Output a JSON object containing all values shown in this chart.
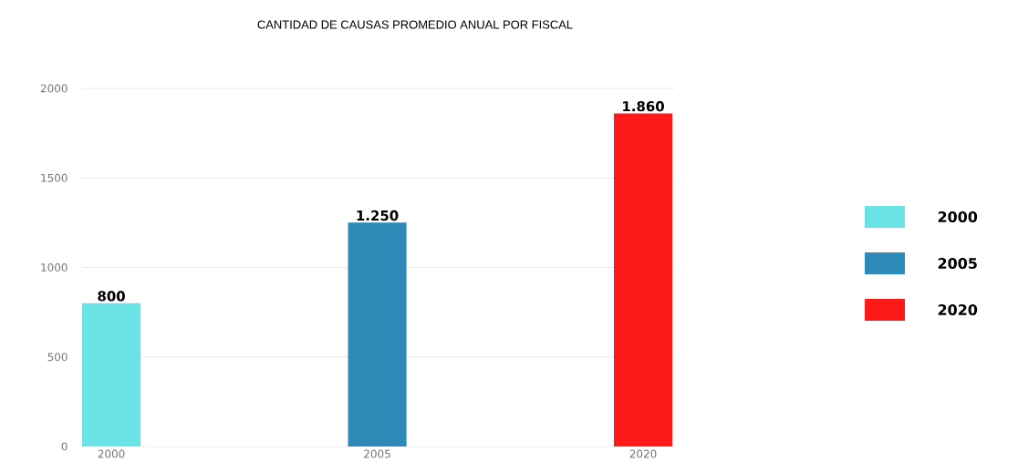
{
  "chart_data": {
    "type": "bar",
    "title": "CANTIDAD DE CAUSAS PROMEDIO ANUAL POR FISCAL",
    "categories": [
      "2000",
      "2005",
      "2020"
    ],
    "series": [
      {
        "name": "2000",
        "color": "#6ae3e6",
        "values": [
          800,
          null,
          null
        ],
        "value_labels": [
          "800",
          null,
          null
        ]
      },
      {
        "name": "2005",
        "color": "#2e8bb8",
        "values": [
          null,
          1250,
          null
        ],
        "value_labels": [
          null,
          "1.250",
          null
        ]
      },
      {
        "name": "2020",
        "color": "#ff1a1a",
        "values": [
          null,
          null,
          1860
        ],
        "value_labels": [
          null,
          null,
          "1.860"
        ]
      }
    ],
    "ylim": [
      0,
      2000
    ],
    "yticks": [
      0,
      500,
      1000,
      1500,
      2000
    ],
    "grid": "y",
    "legend": "right"
  }
}
